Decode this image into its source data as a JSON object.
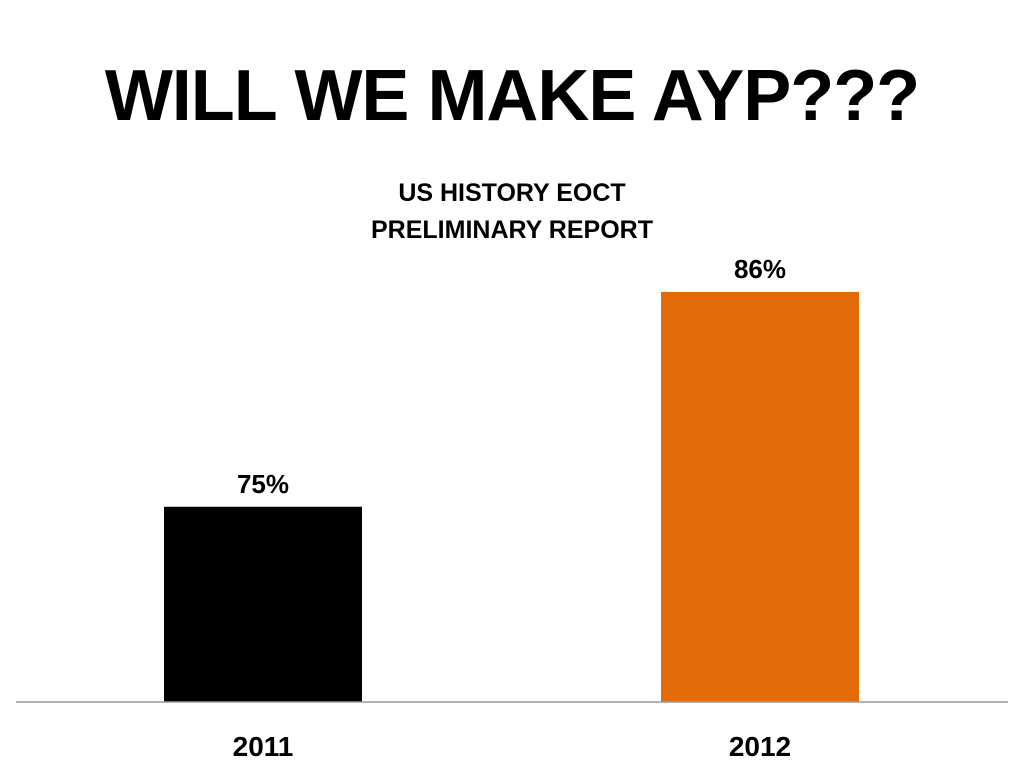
{
  "slide": {
    "title": "WILL WE MAKE AYP???"
  },
  "chart_data": {
    "type": "bar",
    "title": [
      "US HISTORY EOCT",
      "PRELIMINARY REPORT"
    ],
    "categories": [
      "2011",
      "2012"
    ],
    "values": [
      75,
      86
    ],
    "data_labels": [
      "75%",
      "86%"
    ],
    "unit": "%",
    "colors": [
      "#000000",
      "#E36C09"
    ],
    "ylim": [
      65,
      88
    ],
    "xlabel": "",
    "ylabel": "",
    "grid": false,
    "legend": "none"
  }
}
